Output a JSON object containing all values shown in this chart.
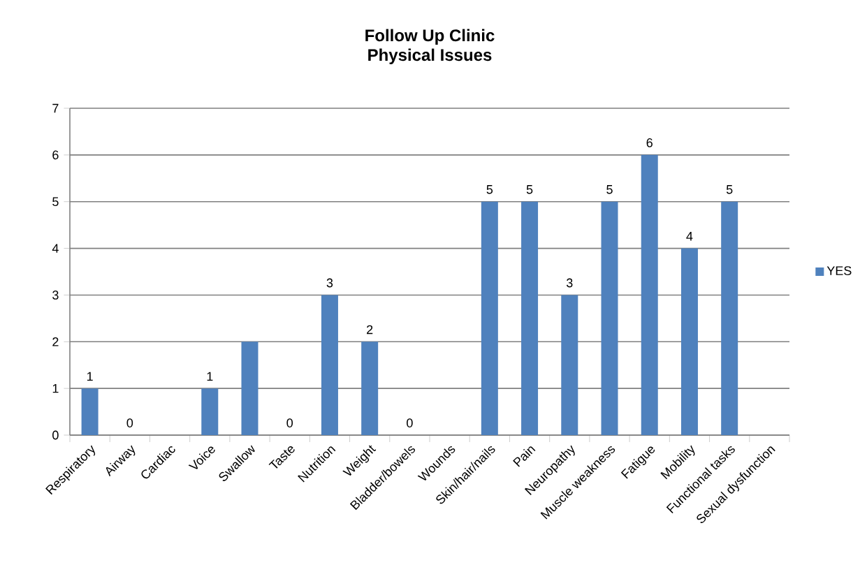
{
  "chart_data": {
    "type": "bar",
    "title": "Follow Up Clinic",
    "subtitle": "Physical Issues",
    "categories": [
      "Respiratory",
      "Airway",
      "Cardiac",
      "Voice",
      "Swallow",
      "Taste",
      "Nutrition",
      "Weight",
      "Bladder/bowels",
      "Wounds",
      "Skin/hair/nails",
      "Pain",
      "Neuropathy",
      "Muscle weakness",
      "Fatigue",
      "Mobility",
      "Functional tasks",
      "Sexual dysfunction"
    ],
    "series": [
      {
        "name": "YES",
        "color": "#4f81bd",
        "values": [
          1,
          0,
          null,
          1,
          2,
          0,
          3,
          2,
          0,
          null,
          5,
          5,
          3,
          5,
          6,
          4,
          5,
          null
        ],
        "value_labels": [
          "1",
          "0",
          null,
          "1",
          null,
          "0",
          "3",
          "2",
          "0",
          null,
          "5",
          "5",
          "3",
          "5",
          "6",
          "4",
          "5",
          null
        ]
      }
    ],
    "ylim": [
      0,
      7
    ],
    "yticks": [
      0,
      1,
      2,
      3,
      4,
      5,
      6,
      7
    ],
    "grid": "y",
    "legend": "right"
  }
}
